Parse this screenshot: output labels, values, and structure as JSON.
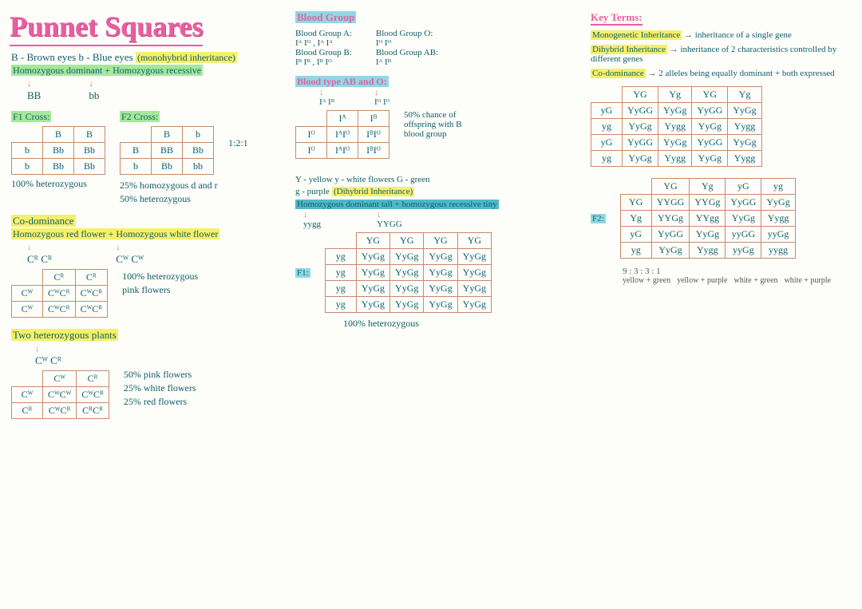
{
  "title": "Punnet Squares",
  "col1": {
    "alleles": "B - Brown eyes   b - Blue eyes",
    "mono": "(monohybrid inheritance)",
    "cross_desc": "Homozygous dominant + Homozygous recessive",
    "p1": "BB",
    "p2": "bb",
    "f1_label": "F1 Cross:",
    "f2_label": "F2 Cross:",
    "f1": {
      "top": [
        "B",
        "B"
      ],
      "left": [
        "b",
        "b"
      ],
      "cells": [
        [
          "Bb",
          "Bb"
        ],
        [
          "Bb",
          "Bb"
        ]
      ]
    },
    "f1_note": "100% heterozygous",
    "f2": {
      "top": [
        "B",
        "b"
      ],
      "left": [
        "B",
        "b"
      ],
      "cells": [
        [
          "BB",
          "Bb"
        ],
        [
          "Bb",
          "bb"
        ]
      ]
    },
    "f2_ratio": "1:2:1",
    "f2_note1": "25% homozygous d and r",
    "f2_note2": "50% heterozygous",
    "codom_head": "Co-dominance",
    "codom_desc": "Homozygous red flower + Homozygous white flower",
    "cR": "Cᴿ Cᴿ",
    "cW": "Cᵂ Cᵂ",
    "codom_tbl": {
      "top": [
        "Cᴿ",
        "Cᴿ"
      ],
      "left": [
        "Cᵂ",
        "Cᵂ"
      ],
      "cells": [
        [
          "CᵂCᴿ",
          "CᵂCᴿ"
        ],
        [
          "CᵂCᴿ",
          "CᵂCᴿ"
        ]
      ]
    },
    "codom_note1": "100% heterozygous",
    "codom_note2": "pink flowers",
    "hetero_head": "Two heterozygous plants",
    "hetero_p": "Cᵂ Cᴿ",
    "hetero_tbl": {
      "top": [
        "Cᵂ",
        "Cᴿ"
      ],
      "left": [
        "Cᵂ",
        "Cᴿ"
      ],
      "cells": [
        [
          "CᵂCᵂ",
          "CᵂCᴿ"
        ],
        [
          "CᵂCᴿ",
          "CᴿCᴿ"
        ]
      ]
    },
    "hetero_note1": "50% pink flowers",
    "hetero_note2": "25% white flowers",
    "hetero_note3": "25% red flowers"
  },
  "col2": {
    "bg_head": "Blood Group",
    "bgA_t": "Blood Group A:",
    "bgA": "Iᴬ Iᴼ , Iᴬ Iᴬ",
    "bgO_t": "Blood Group O:",
    "bgO": "Iᴼ Iᴼ",
    "bgB_t": "Blood Group B:",
    "bgB": "Iᴮ Iᴮ , Iᴮ Iᴼ",
    "bgAB_t": "Blood Group AB:",
    "bgAB": "Iᴬ Iᴮ",
    "bt_head": "Blood type AB and O:",
    "bt_p1": "Iᴬ Iᴮ",
    "bt_p2": "Iᴼ Iᴼ",
    "bt_tbl": {
      "top": [
        "Iᴬ",
        "Iᴮ"
      ],
      "left": [
        "Iᴼ",
        "Iᴼ"
      ],
      "cells": [
        [
          "IᴬIᴼ",
          "IᴮIᴼ"
        ],
        [
          "IᴬIᴼ",
          "IᴮIᴼ"
        ]
      ]
    },
    "bt_note1": "50% chance of",
    "bt_note2": "offspring with B",
    "bt_note3": "blood group",
    "dihy_key": "Y - yellow  y - white flowers   G - green",
    "dihy_key2": "g - purple",
    "dihy_tag": "(Dihybrid Inheritance)",
    "dihy_desc": "Homozygous dominant tall + homozygous recessive tiny",
    "dihy_p1": "yygg",
    "dihy_p2": "YYGG",
    "f1_lab": "F1:",
    "dihy_f1": {
      "top": [
        "YG",
        "YG",
        "YG",
        "YG"
      ],
      "left": [
        "yg",
        "yg",
        "yg",
        "yg"
      ],
      "cells": [
        [
          "YyGg",
          "YyGg",
          "YyGg",
          "YyGg"
        ],
        [
          "YyGg",
          "YyGg",
          "YyGg",
          "YyGg"
        ],
        [
          "YyGg",
          "YyGg",
          "YyGg",
          "YyGg"
        ],
        [
          "YyGg",
          "YyGg",
          "YyGg",
          "YyGg"
        ]
      ]
    },
    "dihy_note": "100% heterozygous"
  },
  "col3": {
    "key_head": "Key Terms:",
    "t1_h": "Monogenetic Inheritance",
    "t1_d": "→ inheritance of a single gene",
    "t2_h": "Dihybrid Inheritance",
    "t2_d": "→ inheritance of 2 characteristics controlled by different genes",
    "t3_h": "Co-dominance",
    "t3_d": "→ 2 alleles being equally dominant + both expressed",
    "sq1": {
      "top": [
        "YG",
        "Yg",
        "YG",
        "Yg"
      ],
      "left": [
        "yG",
        "yg",
        "yG",
        "yg"
      ],
      "cells": [
        [
          "YyGG",
          "YyGg",
          "YyGG",
          "YyGg"
        ],
        [
          "YyGg",
          "Yygg",
          "YyGg",
          "Yygg"
        ],
        [
          "YyGG",
          "YyGg",
          "YyGG",
          "YyGg"
        ],
        [
          "YyGg",
          "Yygg",
          "YyGg",
          "Yygg"
        ]
      ]
    },
    "f2_lab": "F2:",
    "sq2": {
      "top": [
        "YG",
        "Yg",
        "yG",
        "yg"
      ],
      "left": [
        "YG",
        "Yg",
        "yG",
        "yg"
      ],
      "cells": [
        [
          "YYGG",
          "YYGg",
          "YyGG",
          "YyGg"
        ],
        [
          "YYGg",
          "YYgg",
          "YyGg",
          "Yygg"
        ],
        [
          "YyGG",
          "YyGg",
          "yyGG",
          "yyGg"
        ],
        [
          "YyGg",
          "Yygg",
          "yyGg",
          "yygg"
        ]
      ]
    },
    "ratio": "9 : 3 : 3 : 1",
    "r1": "yellow + green",
    "r2": "yellow + purple",
    "r3": "white + green",
    "r4": "white + purple"
  }
}
